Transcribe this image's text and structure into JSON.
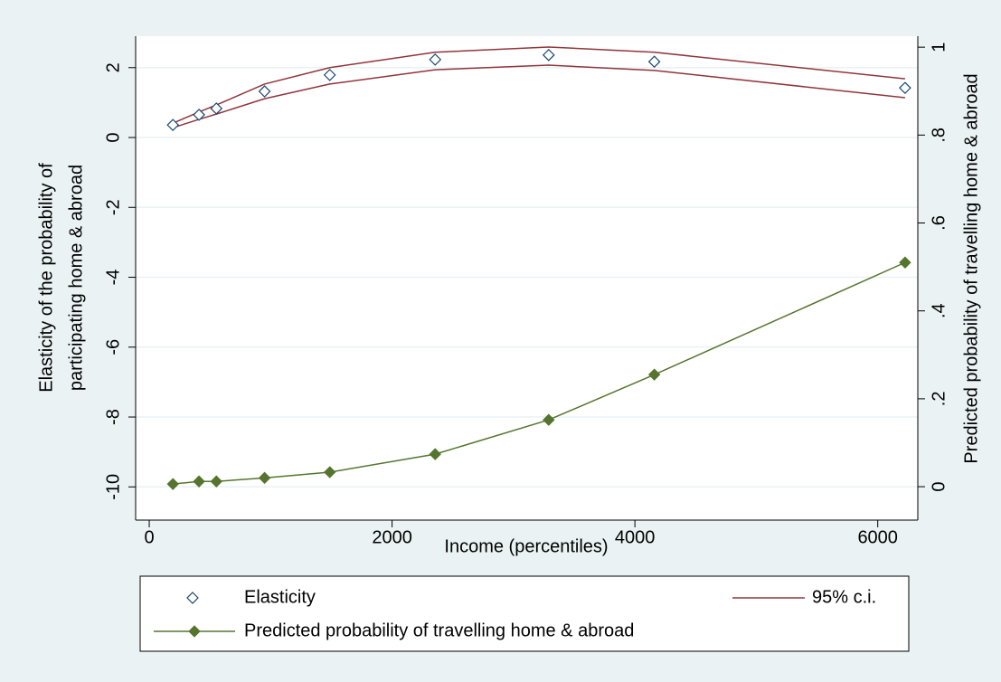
{
  "chart_data": {
    "type": "line",
    "x_label": "Income (percentiles)",
    "y_label": [
      "Elasticity of the probability of",
      "participating home & abroad"
    ],
    "y2_label": "Predicted probability of travelling home & abroad",
    "x": [
      195,
      410,
      553,
      950,
      1487,
      2355,
      3290,
      4160,
      6225
    ],
    "xlim": [
      -112,
      6330
    ],
    "xticks": [
      0,
      2000,
      4000,
      6000
    ],
    "ylim": [
      -10.95,
      2.9
    ],
    "yticks": [
      -10,
      -8,
      -6,
      -4,
      -2,
      0,
      2
    ],
    "y2lim": [
      -0.076,
      1.025
    ],
    "y2ticks": [
      0,
      {
        "value": 0.2,
        "label": ".2"
      },
      {
        "value": 0.4,
        "label": ".4"
      },
      {
        "value": 0.6,
        "label": ".6"
      },
      {
        "value": 0.8,
        "label": ".8"
      },
      1
    ],
    "grid": true,
    "series": [
      {
        "name": "Elasticity",
        "type": "scatter",
        "marker": "hollow-diamond",
        "color": "#1a476f",
        "values": [
          0.36,
          0.65,
          0.83,
          1.32,
          1.79,
          2.23,
          2.36,
          2.17,
          1.42
        ]
      },
      {
        "name": "95% c.i.",
        "type": "band-lines",
        "color": "#90353b",
        "upper": [
          0.41,
          0.73,
          0.93,
          1.53,
          2.0,
          2.44,
          2.59,
          2.44,
          1.68
        ],
        "lower": [
          0.28,
          0.52,
          0.67,
          1.11,
          1.53,
          1.94,
          2.07,
          1.92,
          1.14
        ]
      },
      {
        "name": "Predicted probability of travelling home & abroad",
        "type": "line",
        "marker": "diamond",
        "color": "#55752f",
        "axis": "y2",
        "values": [
          0.006,
          0.012,
          0.012,
          0.02,
          0.033,
          0.074,
          0.152,
          0.255,
          0.51
        ]
      }
    ]
  }
}
